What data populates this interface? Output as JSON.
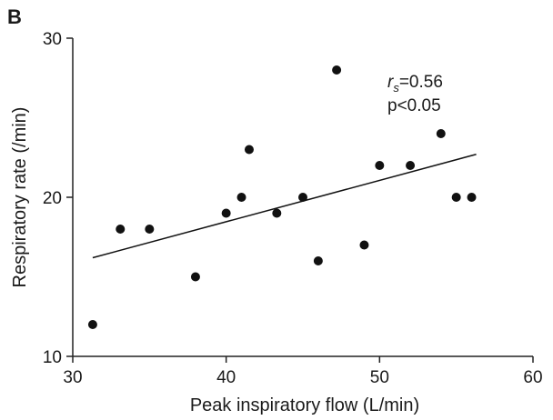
{
  "chart_data": {
    "type": "scatter",
    "panel_label": "B",
    "xlabel": "Peak inspiratory flow (L/min)",
    "ylabel": "Respiratory rate (/min)",
    "xlim": [
      30,
      60
    ],
    "ylim": [
      10,
      30
    ],
    "xticks": [
      "30",
      "40",
      "50",
      "60"
    ],
    "yticks": [
      "10",
      "20",
      "30"
    ],
    "grid": false,
    "legend": "none",
    "points": [
      {
        "x": 31.3,
        "y": 12
      },
      {
        "x": 33.1,
        "y": 18
      },
      {
        "x": 35.0,
        "y": 18
      },
      {
        "x": 38.0,
        "y": 15
      },
      {
        "x": 40.0,
        "y": 19
      },
      {
        "x": 41.0,
        "y": 20
      },
      {
        "x": 41.5,
        "y": 23
      },
      {
        "x": 43.3,
        "y": 19
      },
      {
        "x": 45.0,
        "y": 20
      },
      {
        "x": 46.0,
        "y": 16
      },
      {
        "x": 47.2,
        "y": 28
      },
      {
        "x": 49.0,
        "y": 17
      },
      {
        "x": 50.0,
        "y": 22
      },
      {
        "x": 52.0,
        "y": 22
      },
      {
        "x": 54.0,
        "y": 24
      },
      {
        "x": 55.0,
        "y": 20
      },
      {
        "x": 56.0,
        "y": 20
      }
    ],
    "trendline": {
      "x": [
        31.3,
        56.3
      ],
      "y": [
        16.2,
        22.7
      ]
    },
    "annotation": {
      "r_symbol": "r",
      "r_subscript": "s",
      "r_value": "=0.56",
      "p_text": "p<0.05"
    },
    "colors": {
      "marker": "#111111",
      "line": "#111111",
      "axis": "#222222"
    }
  }
}
